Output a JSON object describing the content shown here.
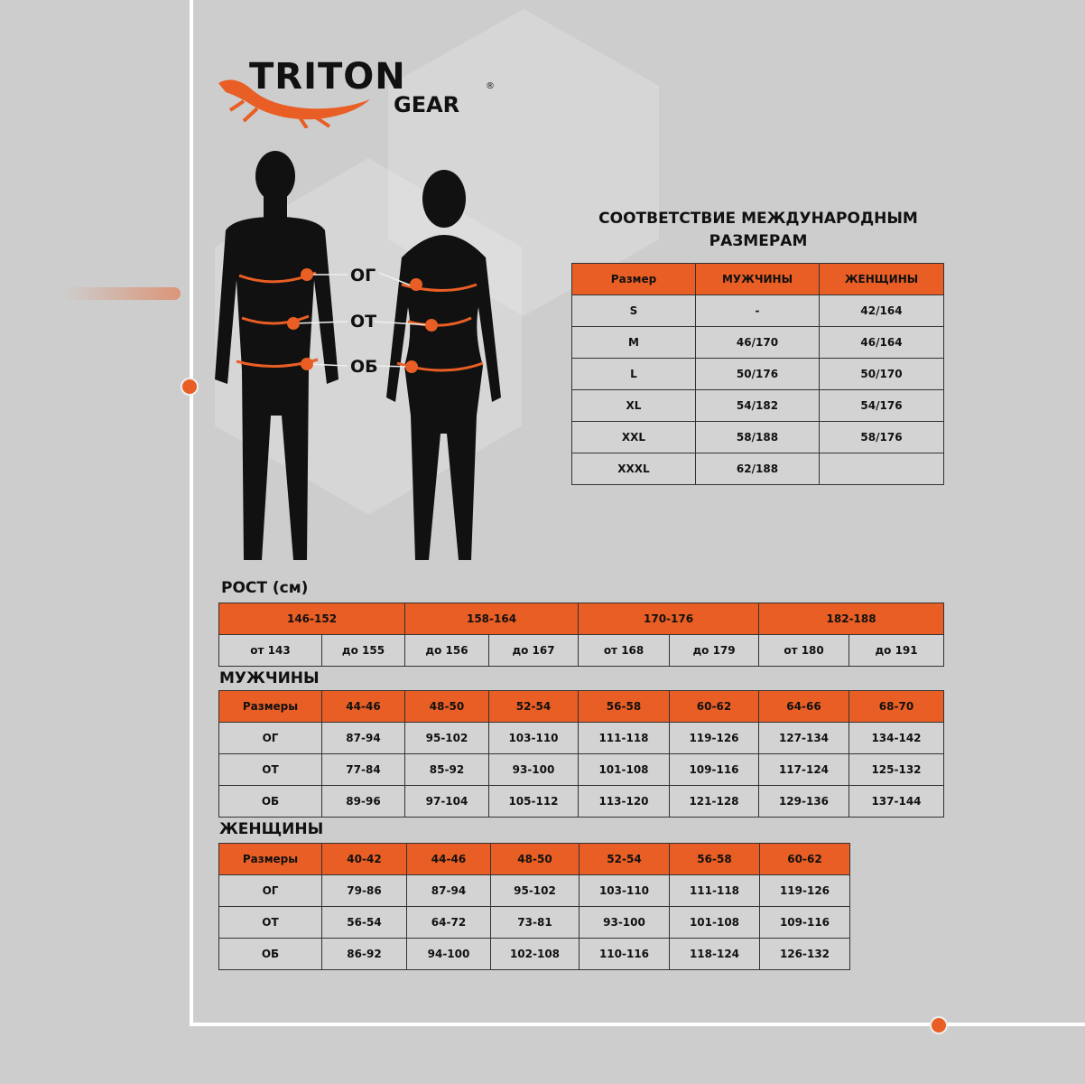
{
  "logo": {
    "name": "TRITON",
    "sub": "GEAR",
    "mark": "®"
  },
  "figure_labels": {
    "chest": "ОГ",
    "waist": "ОТ",
    "hips": "ОБ"
  },
  "intl": {
    "title": "СООТВЕТСТВИЕ МЕЖДУНАРОДНЫМ РАЗМЕРАМ",
    "headers": [
      "Размер",
      "МУЖЧИНЫ",
      "ЖЕНЩИНЫ"
    ],
    "rows": [
      [
        "S",
        "-",
        "42/164"
      ],
      [
        "M",
        "46/170",
        "46/164"
      ],
      [
        "L",
        "50/176",
        "50/170"
      ],
      [
        "XL",
        "54/182",
        "54/176"
      ],
      [
        "XXL",
        "58/188",
        "58/176"
      ],
      [
        "XXXL",
        "62/188",
        ""
      ]
    ]
  },
  "height": {
    "title": "РОСТ (см)",
    "groups": [
      "146-152",
      "158-164",
      "170-176",
      "182-188"
    ],
    "sub": [
      "от 143",
      "до 155",
      "до 156",
      "до 167",
      "от 168",
      "до 179",
      "от 180",
      "до 191"
    ]
  },
  "men": {
    "title": "МУЖЧИНЫ",
    "headers": [
      "Размеры",
      "44-46",
      "48-50",
      "52-54",
      "56-58",
      "60-62",
      "64-66",
      "68-70"
    ],
    "rows": [
      [
        "ОГ",
        "87-94",
        "95-102",
        "103-110",
        "111-118",
        "119-126",
        "127-134",
        "134-142"
      ],
      [
        "ОТ",
        "77-84",
        "85-92",
        "93-100",
        "101-108",
        "109-116",
        "117-124",
        "125-132"
      ],
      [
        "ОБ",
        "89-96",
        "97-104",
        "105-112",
        "113-120",
        "121-128",
        "129-136",
        "137-144"
      ]
    ]
  },
  "women": {
    "title": "ЖЕНЩИНЫ",
    "headers": [
      "Размеры",
      "40-42",
      "44-46",
      "48-50",
      "52-54",
      "56-58",
      "60-62"
    ],
    "rows": [
      [
        "ОГ",
        "79-86",
        "87-94",
        "95-102",
        "103-110",
        "111-118",
        "119-126"
      ],
      [
        "ОТ",
        "56-54",
        "64-72",
        "73-81",
        "93-100",
        "101-108",
        "109-116"
      ],
      [
        "ОБ",
        "86-92",
        "94-100",
        "102-108",
        "110-116",
        "118-124",
        "126-132"
      ]
    ]
  },
  "colors": {
    "accent": "#e95e24",
    "background": "#cdcdcd"
  }
}
